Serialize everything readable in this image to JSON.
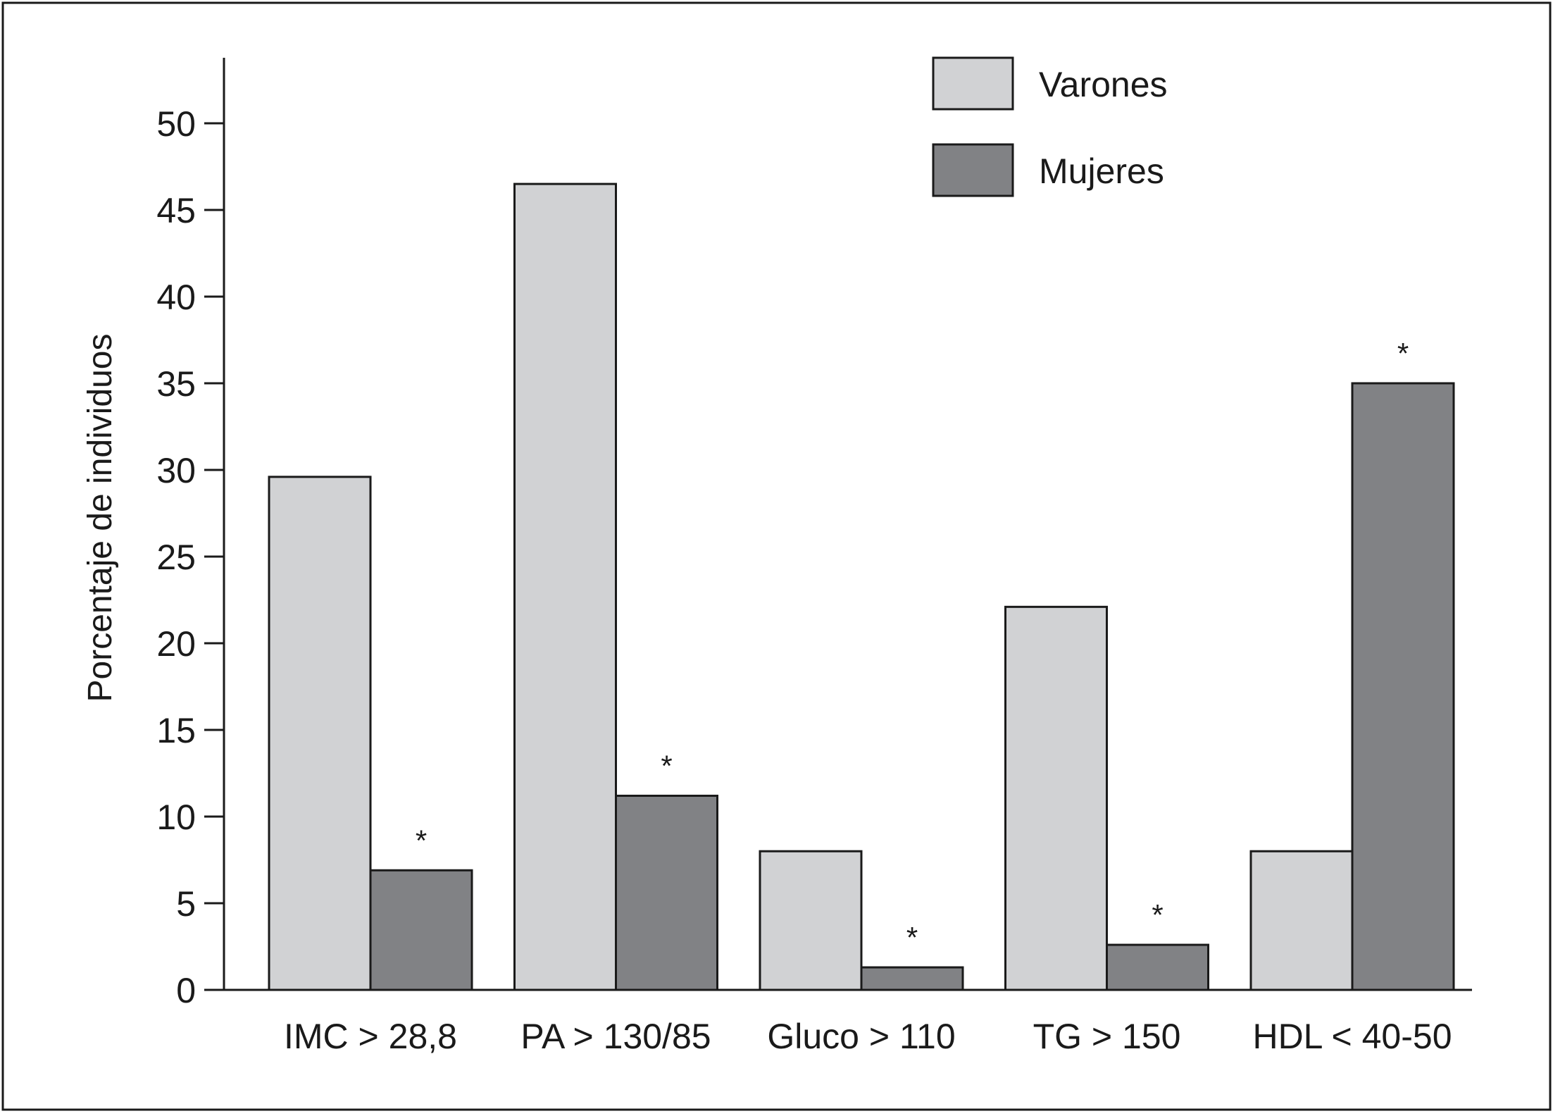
{
  "chart_data": {
    "type": "bar",
    "ylabel": "Porcentaje de individuos",
    "xlabel": "",
    "ylim": [
      0,
      50
    ],
    "yticks": [
      0,
      5,
      10,
      15,
      20,
      25,
      30,
      35,
      40,
      45,
      50
    ],
    "categories": [
      "IMC > 28,8",
      "PA > 130/85",
      "Gluco > 110",
      "TG > 150",
      "HDL < 40-50"
    ],
    "series": [
      {
        "name": "Varones",
        "color": "#d1d2d4",
        "values": [
          29.6,
          46.5,
          8.0,
          22.1,
          8.0
        ]
      },
      {
        "name": "Mujeres",
        "color": "#818285",
        "values": [
          6.9,
          11.2,
          1.3,
          2.6,
          35.0
        ]
      }
    ],
    "annotations": [
      {
        "category": "IMC > 28,8",
        "series": "Mujeres",
        "text": "*"
      },
      {
        "category": "PA > 130/85",
        "series": "Mujeres",
        "text": "*"
      },
      {
        "category": "Gluco > 110",
        "series": "Mujeres",
        "text": "*"
      },
      {
        "category": "TG > 150",
        "series": "Mujeres",
        "text": "*"
      },
      {
        "category": "HDL < 40-50",
        "series": "Mujeres",
        "text": "*"
      }
    ],
    "legend_position": "top-right",
    "grid": false
  }
}
